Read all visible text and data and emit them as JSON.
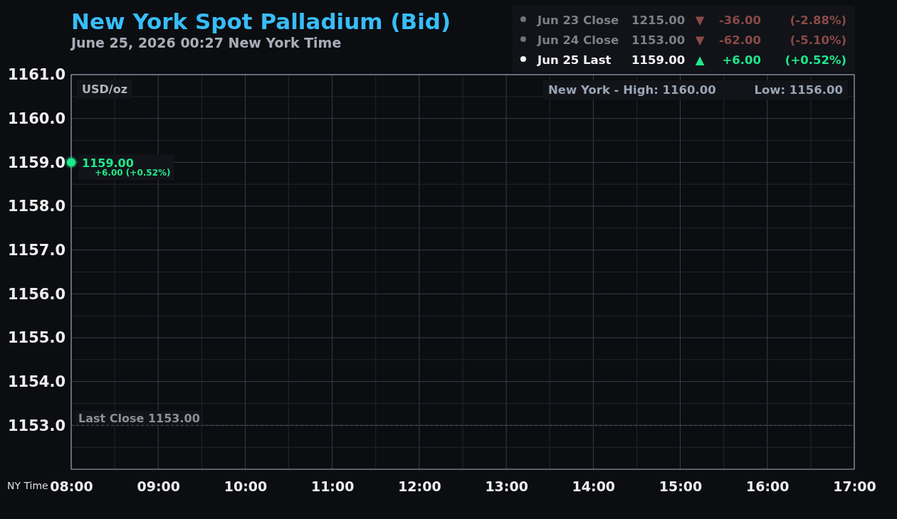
{
  "chart_data": {
    "type": "scatter",
    "title": "New York Spot Palladium (Bid)",
    "subtitle": "June 25, 2026 00:27 New York Time",
    "xlabel": "NY Time",
    "ylabel": "USD/oz",
    "x": [
      8
    ],
    "values": [
      1159
    ],
    "color": "#1ee88c",
    "marker": "circle",
    "value_labels": [
      "1159.00"
    ],
    "xlim": [
      8,
      17
    ],
    "xticks": [
      {
        "value": 8,
        "label": "08:00"
      },
      {
        "value": 8.5,
        "label": null
      },
      {
        "value": 9,
        "label": "09:00"
      },
      {
        "value": 9.5,
        "label": null
      },
      {
        "value": 10,
        "label": "10:00"
      },
      {
        "value": 10.5,
        "label": null
      },
      {
        "value": 11,
        "label": "11:00"
      },
      {
        "value": 11.5,
        "label": null
      },
      {
        "value": 12,
        "label": "12:00"
      },
      {
        "value": 12.5,
        "label": null
      },
      {
        "value": 13,
        "label": "13:00"
      },
      {
        "value": 13.5,
        "label": null
      },
      {
        "value": 14,
        "label": "14:00"
      },
      {
        "value": 14.5,
        "label": null
      },
      {
        "value": 15,
        "label": "15:00"
      },
      {
        "value": 15.5,
        "label": null
      },
      {
        "value": 16,
        "label": "16:00"
      },
      {
        "value": 16.5,
        "label": null
      },
      {
        "value": 17,
        "label": "17:00"
      }
    ],
    "ylim": [
      1152,
      1161
    ],
    "yticks": [
      {
        "value": 1152.5,
        "label": null
      },
      {
        "value": 1153,
        "label": "1153.0"
      },
      {
        "value": 1153.5,
        "label": null
      },
      {
        "value": 1154,
        "label": "1154.0"
      },
      {
        "value": 1154.5,
        "label": null
      },
      {
        "value": 1155,
        "label": "1155.0"
      },
      {
        "value": 1155.5,
        "label": null
      },
      {
        "value": 1156,
        "label": "1156.0"
      },
      {
        "value": 1156.5,
        "label": null
      },
      {
        "value": 1157,
        "label": "1157.0"
      },
      {
        "value": 1157.5,
        "label": null
      },
      {
        "value": 1158,
        "label": "1158.0"
      },
      {
        "value": 1158.5,
        "label": null
      },
      {
        "value": 1159,
        "label": "1159.0"
      },
      {
        "value": 1159.5,
        "label": null
      },
      {
        "value": 1160,
        "label": "1160.0"
      },
      {
        "value": 1160.5,
        "label": null
      },
      {
        "value": 1161,
        "label": "1161.0"
      }
    ],
    "grid": true,
    "ref_lines": [
      {
        "axis": "y",
        "value": 1153,
        "label": "Last Close 1153.00",
        "line_style": "dashed"
      }
    ],
    "annotations": [
      "Jun 23 Close",
      "1215.00",
      "▼",
      "-36.00",
      "(-2.88%)",
      "Jun 24 Close",
      "1153.00",
      "▼",
      "-62.00",
      "(-5.10%)",
      "Jun 25 Last",
      "1159.00",
      "▲",
      "+6.00",
      "(+0.52%)",
      "New York - High: 1160.00",
      "Low: 1156.00",
      {
        "text": "+6.00 (+0.52%)",
        "x": 8,
        "y": 1159
      }
    ]
  }
}
